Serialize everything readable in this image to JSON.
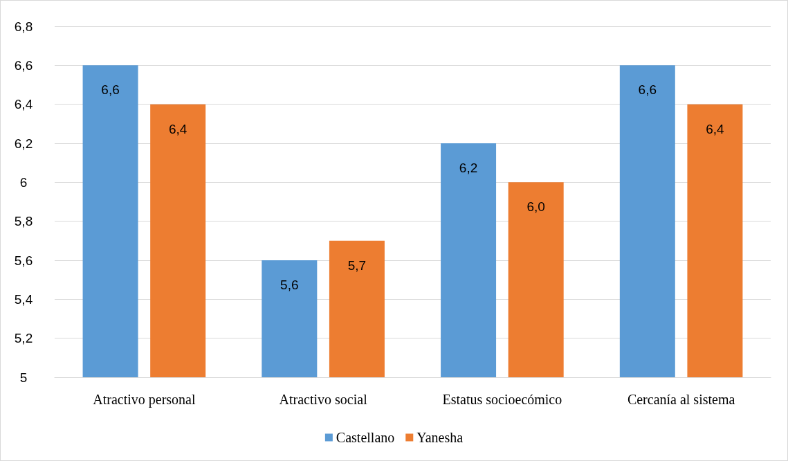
{
  "chart_data": {
    "type": "bar",
    "categories": [
      "Atractivo personal",
      "Atractivo social",
      "Estatus socioecómico",
      "Cercanía al sistema"
    ],
    "series": [
      {
        "name": "Castellano",
        "color": "#5b9bd5",
        "values": [
          6.6,
          5.6,
          6.2,
          6.6
        ],
        "value_labels": [
          "6,6",
          "5,6",
          "6,2",
          "6,6"
        ]
      },
      {
        "name": "Yanesha",
        "color": "#ed7d31",
        "values": [
          6.4,
          5.7,
          6.0,
          6.4
        ],
        "value_labels": [
          "6,4",
          "5,7",
          "6,0",
          "6,4"
        ]
      }
    ],
    "ylim": [
      5,
      6.8
    ],
    "yticks": [
      5,
      {
        "value": 5.2,
        "label": "5,2"
      },
      {
        "value": 5.4,
        "label": "5,4"
      },
      {
        "value": 5.6,
        "label": "5,6"
      },
      {
        "value": 5.8,
        "label": "5,8"
      },
      6,
      {
        "value": 6.2,
        "label": "6,2"
      },
      {
        "value": 6.4,
        "label": "6,4"
      },
      {
        "value": 6.6,
        "label": "6,6"
      },
      {
        "value": 6.8,
        "label": "6,8"
      }
    ],
    "grid": "y",
    "legend": "bottom"
  }
}
